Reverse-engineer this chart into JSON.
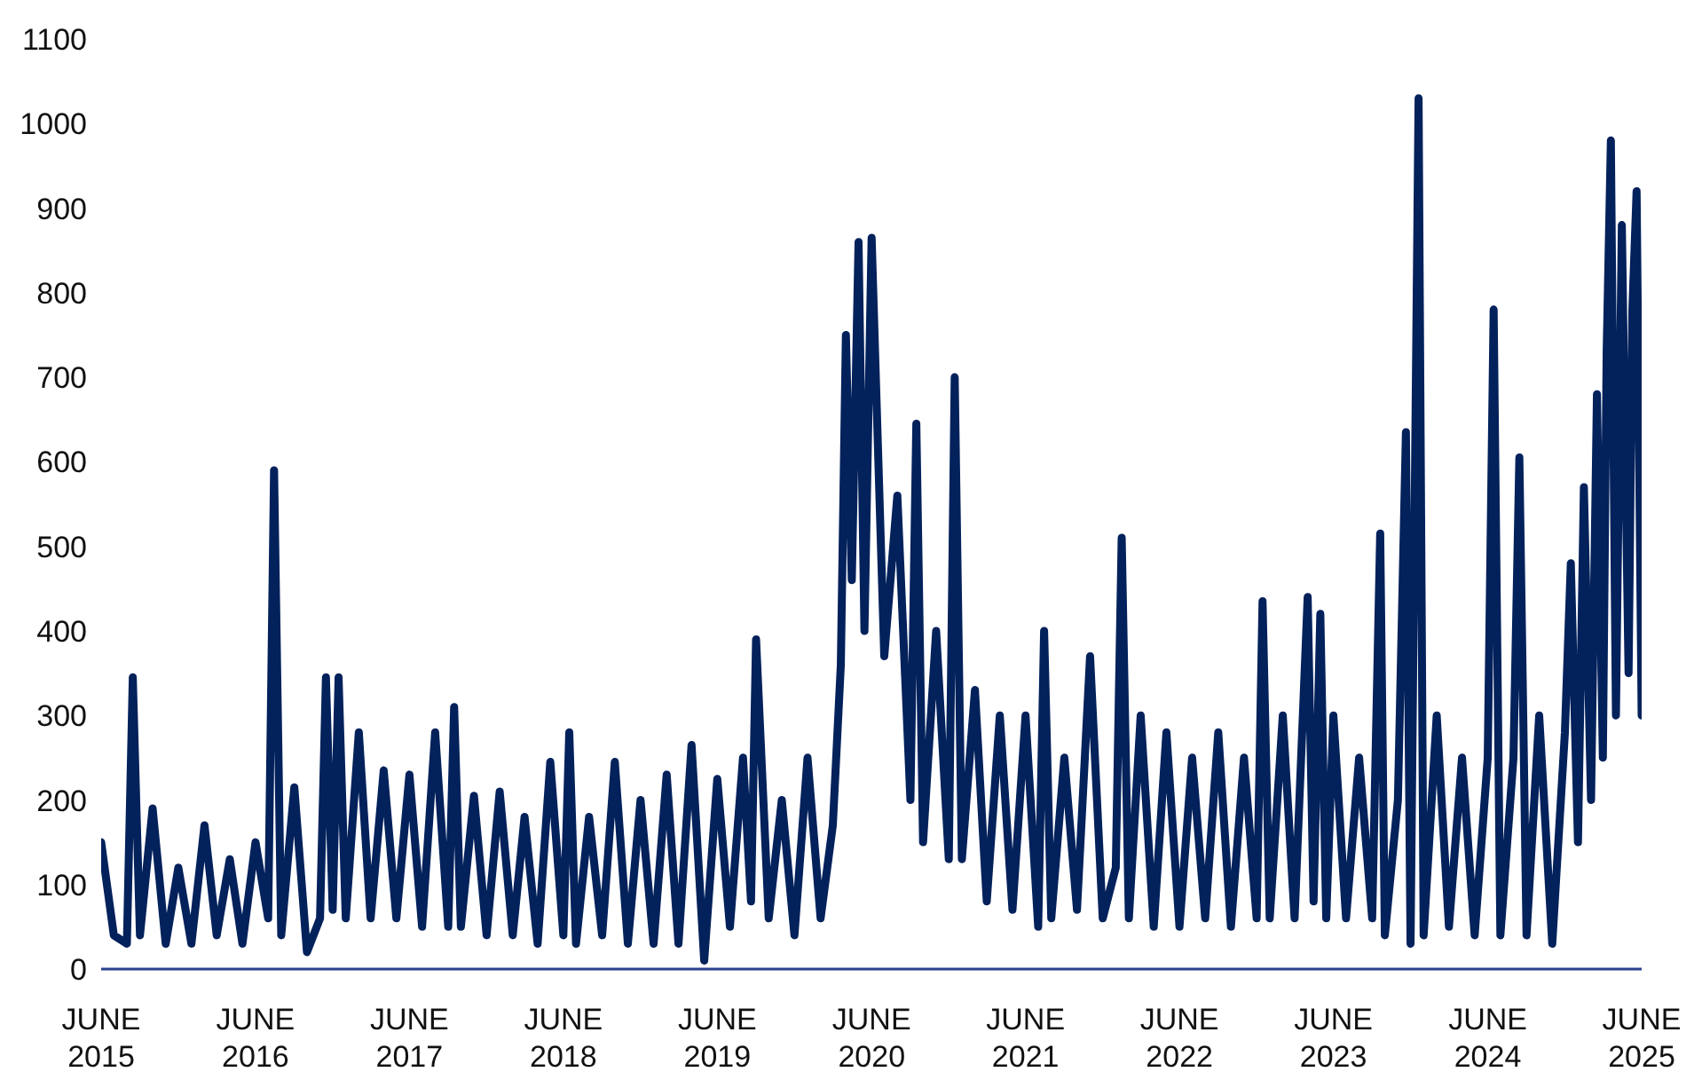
{
  "chart_data": {
    "type": "line",
    "x": [
      "2015-06-01",
      "2015-07-01",
      "2015-08-01",
      "2015-08-15",
      "2015-09-01",
      "2015-10-01",
      "2015-11-01",
      "2015-12-01",
      "2016-01-01",
      "2016-02-01",
      "2016-03-01",
      "2016-04-01",
      "2016-05-01",
      "2016-06-01",
      "2016-07-01",
      "2016-07-15",
      "2016-08-01",
      "2016-09-01",
      "2016-10-01",
      "2016-11-01",
      "2016-11-15",
      "2016-12-01",
      "2016-12-15",
      "2017-01-01",
      "2017-02-01",
      "2017-03-01",
      "2017-04-01",
      "2017-05-01",
      "2017-06-01",
      "2017-07-01",
      "2017-08-01",
      "2017-09-01",
      "2017-09-15",
      "2017-10-01",
      "2017-11-01",
      "2017-12-01",
      "2018-01-01",
      "2018-02-01",
      "2018-03-01",
      "2018-04-01",
      "2018-05-01",
      "2018-06-01",
      "2018-06-15",
      "2018-07-01",
      "2018-08-01",
      "2018-09-01",
      "2018-10-01",
      "2018-11-01",
      "2018-12-01",
      "2019-01-01",
      "2019-02-01",
      "2019-03-01",
      "2019-04-01",
      "2019-05-01",
      "2019-06-01",
      "2019-07-01",
      "2019-08-01",
      "2019-08-20",
      "2019-09-01",
      "2019-10-01",
      "2019-11-01",
      "2019-12-01",
      "2020-01-01",
      "2020-02-01",
      "2020-03-01",
      "2020-03-20",
      "2020-04-01",
      "2020-04-15",
      "2020-05-01",
      "2020-05-15",
      "2020-06-01",
      "2020-07-01",
      "2020-08-01",
      "2020-09-01",
      "2020-09-15",
      "2020-10-01",
      "2020-11-01",
      "2020-12-01",
      "2020-12-15",
      "2021-01-01",
      "2021-02-01",
      "2021-03-01",
      "2021-04-01",
      "2021-05-01",
      "2021-06-01",
      "2021-07-01",
      "2021-07-15",
      "2021-08-01",
      "2021-09-01",
      "2021-10-01",
      "2021-11-01",
      "2021-12-01",
      "2022-01-01",
      "2022-01-15",
      "2022-02-01",
      "2022-03-01",
      "2022-04-01",
      "2022-05-01",
      "2022-06-01",
      "2022-07-01",
      "2022-08-01",
      "2022-09-01",
      "2022-10-01",
      "2022-11-01",
      "2022-12-01",
      "2022-12-15",
      "2023-01-01",
      "2023-02-01",
      "2023-03-01",
      "2023-04-01",
      "2023-04-15",
      "2023-05-01",
      "2023-05-15",
      "2023-06-01",
      "2023-07-01",
      "2023-08-01",
      "2023-09-01",
      "2023-09-20",
      "2023-10-01",
      "2023-11-01",
      "2023-11-20",
      "2023-12-01",
      "2023-12-20",
      "2024-01-01",
      "2024-02-01",
      "2024-03-01",
      "2024-04-01",
      "2024-05-01",
      "2024-06-01",
      "2024-06-15",
      "2024-07-01",
      "2024-08-01",
      "2024-08-15",
      "2024-09-01",
      "2024-10-01",
      "2024-11-01",
      "2024-12-01",
      "2024-12-15",
      "2025-01-01",
      "2025-01-15",
      "2025-02-01",
      "2025-02-15",
      "2025-03-01",
      "2025-03-10",
      "2025-03-20",
      "2025-04-01",
      "2025-04-15",
      "2025-05-01",
      "2025-05-10",
      "2025-05-20",
      "2025-06-01"
    ],
    "series": [
      {
        "color": "#03215b",
        "values": [
          150,
          40,
          30,
          345,
          40,
          190,
          30,
          120,
          30,
          170,
          40,
          130,
          30,
          150,
          60,
          590,
          40,
          215,
          20,
          60,
          345,
          70,
          345,
          60,
          280,
          60,
          235,
          60,
          230,
          50,
          280,
          50,
          310,
          50,
          205,
          40,
          210,
          40,
          180,
          30,
          245,
          40,
          280,
          30,
          180,
          40,
          245,
          30,
          200,
          30,
          230,
          30,
          265,
          10,
          225,
          50,
          250,
          80,
          390,
          60,
          200,
          40,
          250,
          60,
          170,
          360,
          750,
          460,
          860,
          400,
          865,
          370,
          560,
          200,
          645,
          150,
          400,
          130,
          700,
          130,
          330,
          80,
          300,
          70,
          300,
          50,
          400,
          60,
          250,
          70,
          370,
          60,
          120,
          510,
          60,
          300,
          50,
          280,
          50,
          250,
          60,
          280,
          50,
          250,
          60,
          435,
          60,
          300,
          60,
          440,
          80,
          420,
          60,
          300,
          60,
          250,
          60,
          515,
          40,
          200,
          635,
          30,
          1030,
          40,
          300,
          50,
          250,
          40,
          250,
          780,
          40,
          250,
          605,
          40,
          300,
          30,
          280,
          480,
          150,
          570,
          200,
          680,
          250,
          730,
          980,
          300,
          880,
          350,
          780,
          920,
          300
        ]
      }
    ],
    "xlim": [
      "2015-06-01",
      "2025-06-01"
    ],
    "xticks": [
      {
        "value": "2015-06",
        "label": "JUNE 2015"
      },
      {
        "value": "2016-06",
        "label": "JUNE 2016"
      },
      {
        "value": "2017-06",
        "label": "JUNE 2017"
      },
      {
        "value": "2018-06",
        "label": "JUNE 2018"
      },
      {
        "value": "2019-06",
        "label": "JUNE 2019"
      },
      {
        "value": "2020-06",
        "label": "JUNE 2020"
      },
      {
        "value": "2021-06",
        "label": "JUNE 2021"
      },
      {
        "value": "2022-06",
        "label": "JUNE 2022"
      },
      {
        "value": "2023-06",
        "label": "JUNE 2023"
      },
      {
        "value": "2024-06",
        "label": "JUNE 2024"
      },
      {
        "value": "2025-06",
        "label": "JUNE 2025"
      }
    ],
    "ylim": [
      0,
      1100
    ],
    "yticks": [
      0,
      100,
      200,
      300,
      400,
      500,
      600,
      700,
      800,
      900,
      1000,
      1100
    ],
    "grid": false,
    "marker": "none",
    "line_style": "solid"
  }
}
